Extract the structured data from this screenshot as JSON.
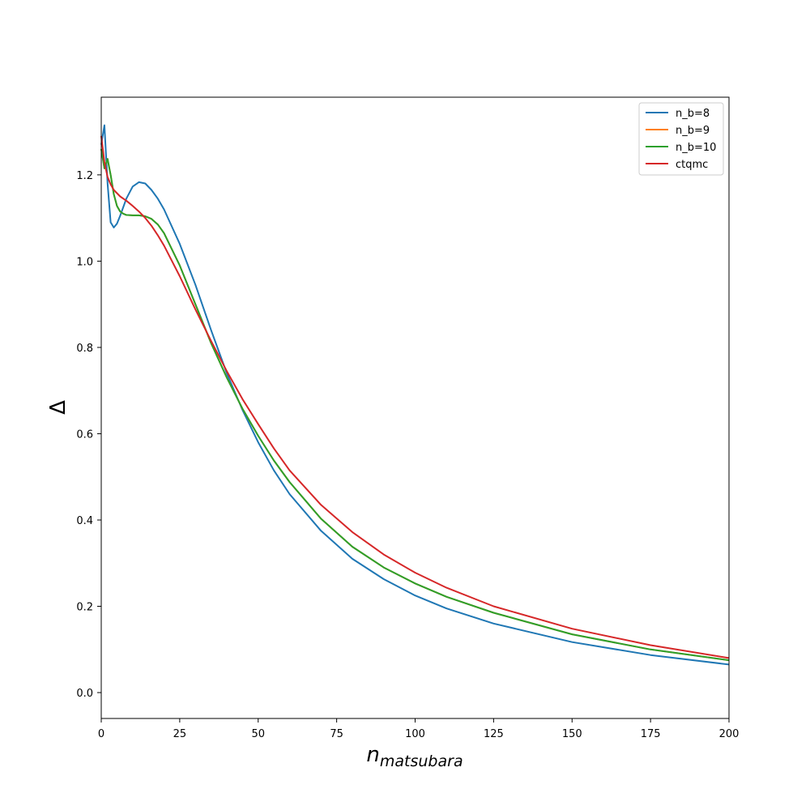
{
  "chart_data": {
    "type": "line",
    "title": "",
    "xlabel": "n",
    "xlabel_subscript": "matsubara",
    "ylabel": "Δ",
    "xlim": [
      0,
      200
    ],
    "ylim": [
      -0.06,
      1.38
    ],
    "xticks": [
      0,
      25,
      50,
      75,
      100,
      125,
      150,
      175,
      200
    ],
    "yticks": [
      0.0,
      0.2,
      0.4,
      0.6,
      0.8,
      1.0,
      1.2
    ],
    "ytick_labels": [
      "0.0",
      "0.2",
      "0.4",
      "0.6",
      "0.8",
      "1.0",
      "1.2"
    ],
    "grid": false,
    "legend_position": "top-right",
    "series": [
      {
        "name": "n_b=8",
        "color": "#1f77b4",
        "x": [
          0,
          1,
          2,
          3,
          4,
          5,
          6,
          8,
          10,
          12,
          14,
          16,
          18,
          20,
          25,
          30,
          35,
          40,
          45,
          50,
          55,
          60,
          70,
          80,
          90,
          100,
          110,
          125,
          150,
          175,
          200
        ],
        "y": [
          1.27,
          1.315,
          1.18,
          1.09,
          1.078,
          1.087,
          1.105,
          1.145,
          1.173,
          1.183,
          1.18,
          1.165,
          1.145,
          1.12,
          1.04,
          0.945,
          0.84,
          0.74,
          0.655,
          0.58,
          0.515,
          0.46,
          0.375,
          0.31,
          0.263,
          0.225,
          0.195,
          0.16,
          0.117,
          0.087,
          0.065
        ]
      },
      {
        "name": "n_b=9",
        "color": "#ff7f0e",
        "x": [
          0,
          1,
          2,
          3,
          4,
          5,
          6,
          7,
          8,
          10,
          12,
          14,
          16,
          18,
          20,
          25,
          30,
          35,
          40,
          45,
          50,
          55,
          60,
          70,
          80,
          90,
          100,
          110,
          125,
          150,
          175,
          200
        ],
        "y": [
          1.26,
          1.215,
          1.237,
          1.2,
          1.155,
          1.128,
          1.115,
          1.11,
          1.107,
          1.106,
          1.106,
          1.104,
          1.098,
          1.085,
          1.065,
          0.99,
          0.9,
          0.81,
          0.73,
          0.658,
          0.595,
          0.538,
          0.488,
          0.403,
          0.338,
          0.29,
          0.253,
          0.222,
          0.185,
          0.135,
          0.1,
          0.075
        ]
      },
      {
        "name": "n_b=10",
        "color": "#2ca02c",
        "x": [
          0,
          1,
          2,
          3,
          4,
          5,
          6,
          7,
          8,
          10,
          12,
          14,
          16,
          18,
          20,
          25,
          30,
          35,
          40,
          45,
          50,
          55,
          60,
          70,
          80,
          90,
          100,
          110,
          125,
          150,
          175,
          200
        ],
        "y": [
          1.26,
          1.215,
          1.237,
          1.2,
          1.155,
          1.128,
          1.115,
          1.11,
          1.107,
          1.106,
          1.106,
          1.104,
          1.098,
          1.085,
          1.065,
          0.99,
          0.9,
          0.81,
          0.73,
          0.658,
          0.595,
          0.538,
          0.488,
          0.403,
          0.338,
          0.29,
          0.253,
          0.222,
          0.185,
          0.135,
          0.1,
          0.075
        ]
      },
      {
        "name": "ctqmc",
        "color": "#d62728",
        "x": [
          0,
          1,
          2,
          3,
          4,
          6,
          8,
          10,
          12,
          14,
          16,
          18,
          20,
          25,
          30,
          35,
          40,
          45,
          50,
          55,
          60,
          70,
          80,
          90,
          100,
          110,
          125,
          150,
          175,
          200
        ],
        "y": [
          1.29,
          1.23,
          1.195,
          1.178,
          1.165,
          1.15,
          1.14,
          1.128,
          1.115,
          1.1,
          1.082,
          1.06,
          1.036,
          0.965,
          0.888,
          0.815,
          0.745,
          0.68,
          0.622,
          0.566,
          0.515,
          0.435,
          0.372,
          0.32,
          0.278,
          0.243,
          0.2,
          0.148,
          0.11,
          0.08
        ]
      }
    ]
  }
}
